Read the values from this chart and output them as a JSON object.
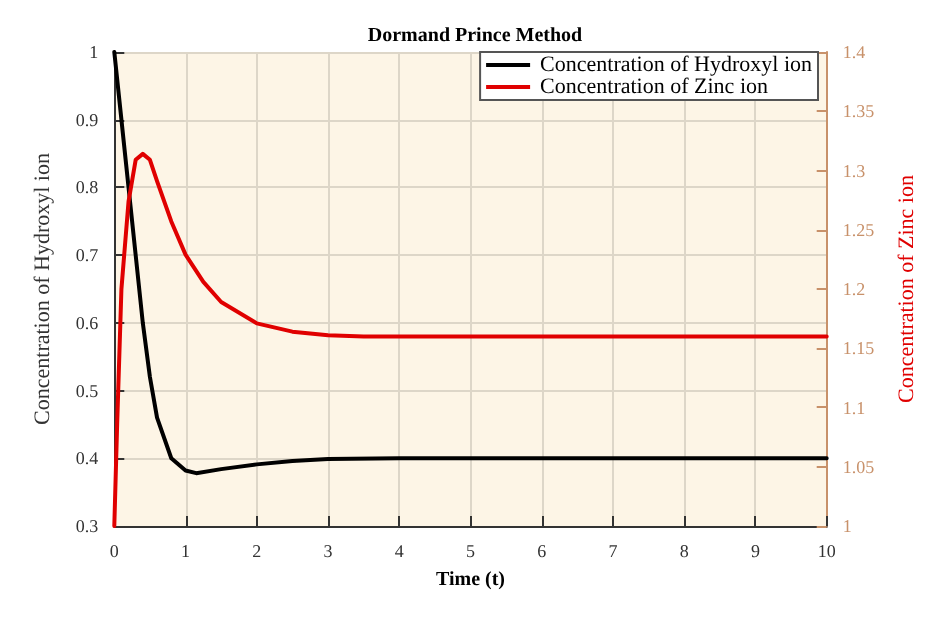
{
  "chart_data": {
    "type": "line",
    "title": "Dormand Prince Method",
    "xlabel": "Time (t)",
    "ylabel": "Concentration of Hydroxyl ion",
    "y2label": "Concentration of Zinc ion",
    "xlim": [
      0,
      10
    ],
    "xticks": [
      0,
      1,
      2,
      3,
      4,
      5,
      6,
      7,
      8,
      9,
      10
    ],
    "ylim": [
      0.3,
      1
    ],
    "yticks": [
      0.3,
      0.4,
      0.5,
      0.6,
      0.7,
      0.8,
      0.9,
      1
    ],
    "y2lim": [
      1,
      1.4
    ],
    "y2ticks": [
      1,
      1.05,
      1.1,
      1.15,
      1.2,
      1.25,
      1.3,
      1.35,
      1.4
    ],
    "grid": true,
    "legend": "top right",
    "marker": "none",
    "line_style": "solid",
    "series": [
      {
        "name": "Concentration of Hydroxyl ion",
        "color": "#000000",
        "x": [
          0,
          0.1,
          0.2,
          0.3,
          0.4,
          0.5,
          0.6,
          0.8,
          1,
          1.15,
          1.5,
          2,
          2.5,
          3,
          4,
          10
        ],
        "values": [
          1,
          0.9,
          0.8,
          0.7,
          0.6,
          0.52,
          0.46,
          0.4,
          0.382,
          0.378,
          0.384,
          0.391,
          0.396,
          0.399,
          0.4,
          0.4
        ]
      },
      {
        "name": "Concentration of Zinc ion",
        "color": "#e00000",
        "axis": "y2",
        "x": [
          0,
          0.04,
          0.1,
          0.2,
          0.3,
          0.4,
          0.5,
          0.6,
          0.8,
          1,
          1.25,
          1.5,
          2,
          2.5,
          3,
          3.5,
          10
        ],
        "values": [
          1,
          1.086,
          1.2,
          1.274,
          1.309,
          1.314,
          1.309,
          1.291,
          1.257,
          1.229,
          1.206,
          1.189,
          1.171,
          1.164,
          1.161,
          1.16,
          1.16
        ]
      }
    ]
  }
}
